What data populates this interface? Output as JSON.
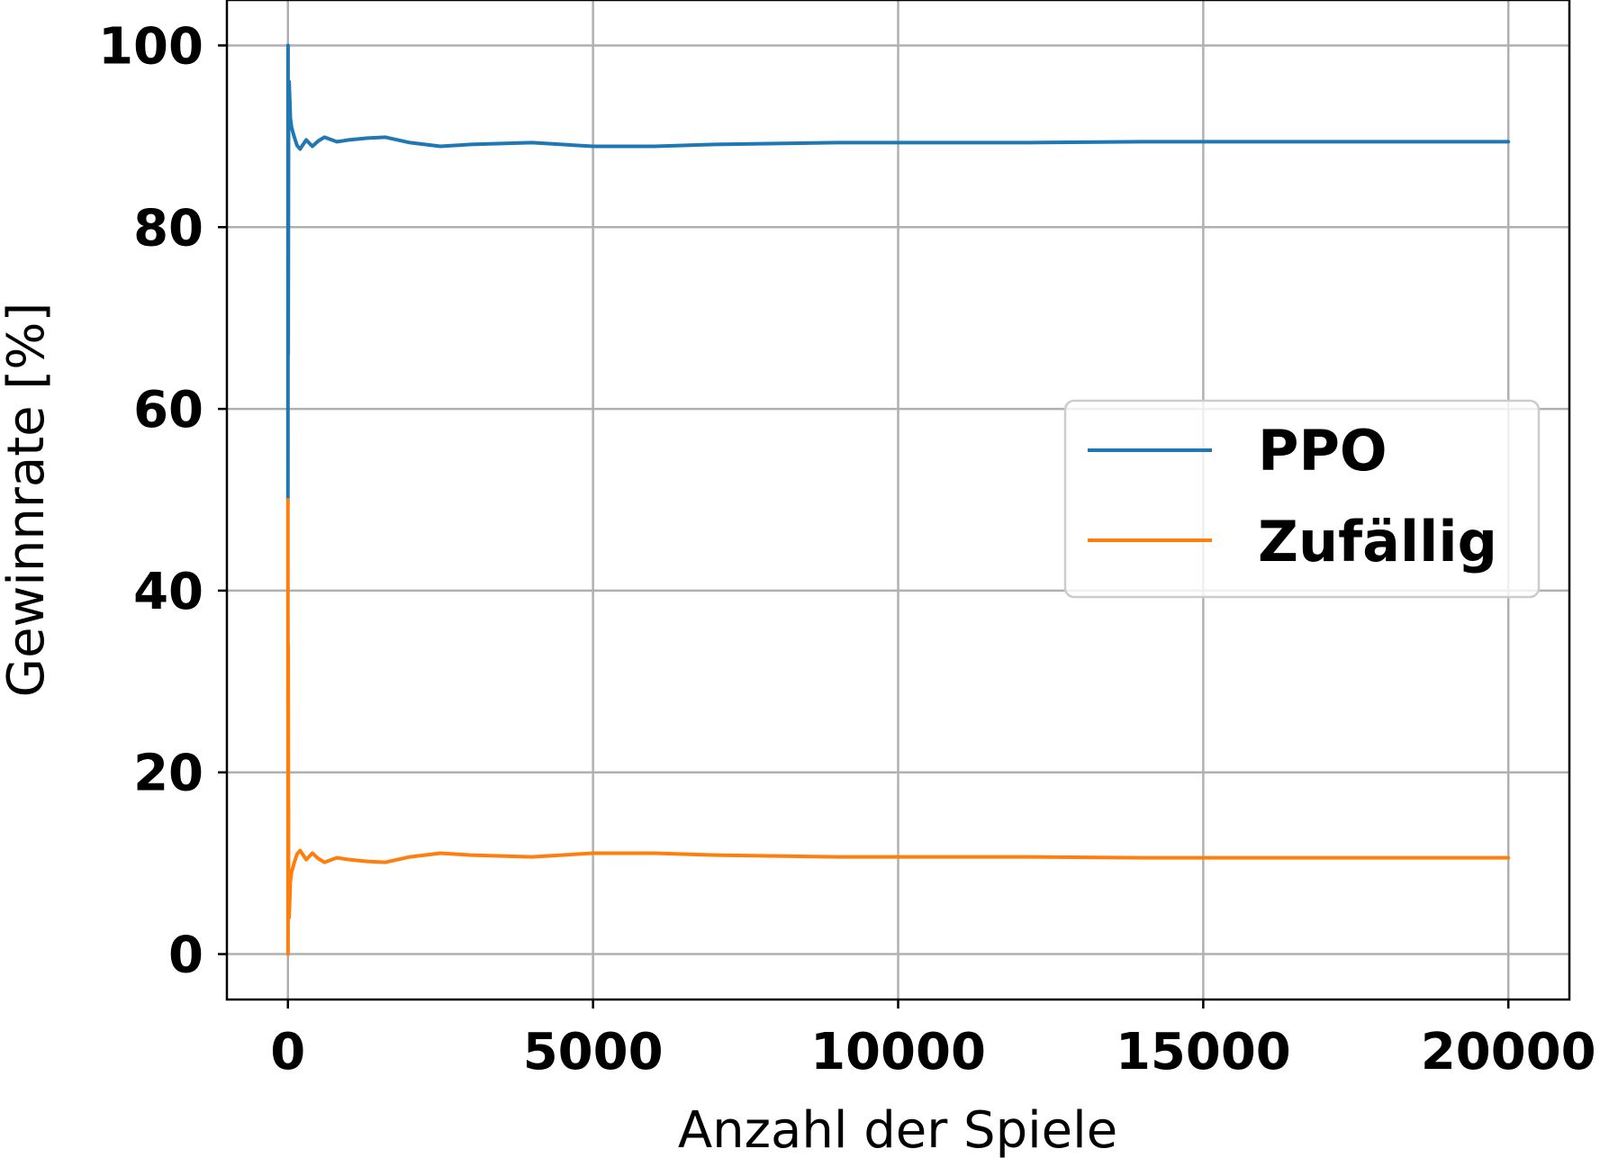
{
  "chart_data": {
    "type": "line",
    "xlabel": "Anzahl der Spiele",
    "ylabel": "Gewinnrate [%]",
    "xlim": [
      -1000,
      21000
    ],
    "ylim": [
      -5,
      105
    ],
    "xticks": [
      0,
      5000,
      10000,
      15000,
      20000
    ],
    "xtick_labels": [
      "0",
      "5000",
      "10000",
      "15000",
      "20000"
    ],
    "yticks": [
      0,
      20,
      40,
      60,
      80,
      100
    ],
    "ytick_labels": [
      "0",
      "20",
      "40",
      "60",
      "80",
      "100"
    ],
    "grid": true,
    "legend_position": "center-right",
    "series": [
      {
        "name": "PPO",
        "color": "#1f77b4",
        "x": [
          1,
          2,
          5,
          10,
          20,
          40,
          60,
          100,
          150,
          200,
          250,
          300,
          400,
          500,
          600,
          800,
          1000,
          1300,
          1600,
          2000,
          2500,
          3000,
          4000,
          5000,
          6000,
          7000,
          8000,
          9000,
          10000,
          12000,
          14000,
          16000,
          18000,
          20000
        ],
        "y": [
          50,
          100,
          66,
          93,
          96,
          92,
          91,
          90,
          89,
          88.6,
          89.1,
          89.6,
          88.9,
          89.5,
          89.9,
          89.4,
          89.6,
          89.8,
          89.9,
          89.3,
          88.9,
          89.1,
          89.3,
          88.9,
          88.9,
          89.1,
          89.2,
          89.3,
          89.3,
          89.3,
          89.4,
          89.4,
          89.4,
          89.4
        ]
      },
      {
        "name": "Zufällig",
        "color": "#ff7f0e",
        "x": [
          1,
          2,
          5,
          10,
          20,
          40,
          60,
          100,
          150,
          200,
          250,
          300,
          400,
          500,
          600,
          800,
          1000,
          1300,
          1600,
          2000,
          2500,
          3000,
          4000,
          5000,
          6000,
          7000,
          8000,
          9000,
          10000,
          12000,
          14000,
          16000,
          18000,
          20000
        ],
        "y": [
          50,
          0,
          34,
          7,
          4,
          8,
          9,
          10,
          11,
          11.4,
          10.9,
          10.4,
          11.1,
          10.5,
          10.1,
          10.6,
          10.4,
          10.2,
          10.1,
          10.7,
          11.1,
          10.9,
          10.7,
          11.1,
          11.1,
          10.9,
          10.8,
          10.7,
          10.7,
          10.7,
          10.6,
          10.6,
          10.6,
          10.6
        ]
      }
    ]
  }
}
